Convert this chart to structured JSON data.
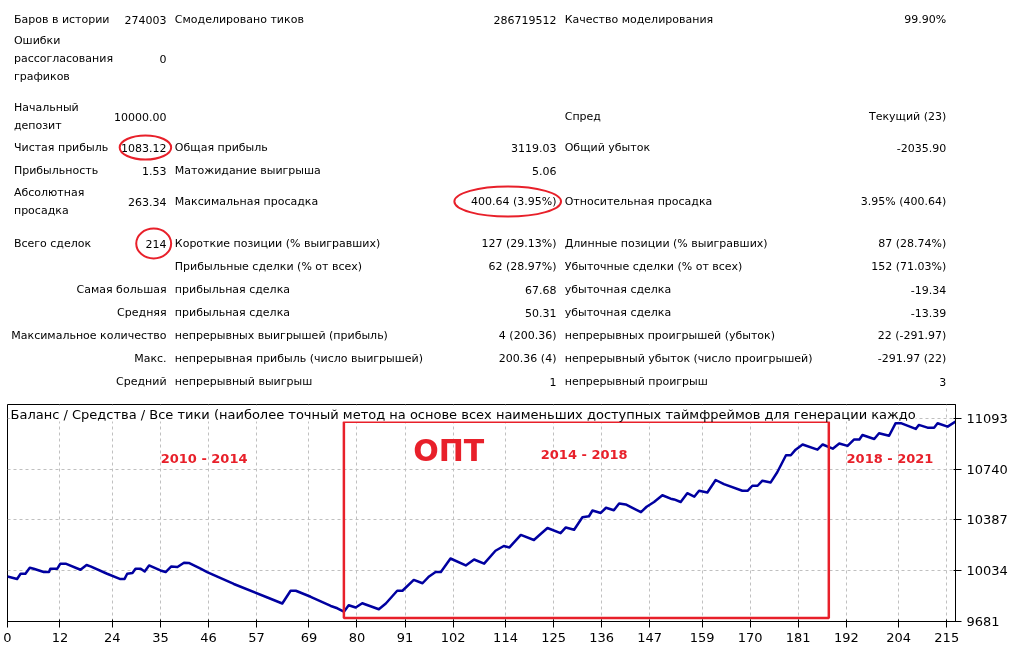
{
  "chart_data": [
    {
      "type": "other",
      "annotations": [
        "Баров в истории",
        "274003",
        "Смоделировано тиков",
        "286719512",
        "Качество моделирования",
        "99.90%",
        "Ошибки рассогласования графиков",
        "0",
        "Начальный депозит",
        "10000.00",
        "Спред",
        "Текущий (23)",
        "Чистая прибыль",
        "1083.12",
        "Общая прибыль",
        "3119.03",
        "Общий убыток",
        "-2035.90",
        "Прибыльность",
        "1.53",
        "Матожидание выигрыша",
        "5.06",
        "Абсолютная просадка",
        "263.34",
        "Максимальная просадка",
        "400.64 (3.95%)",
        "Относительная просадка",
        "3.95% (400.64)",
        "Всего сделок",
        "214",
        "Короткие позиции (% выигравших)",
        "127 (29.13%)",
        "Длинные позиции (% выигравших)",
        "87 (28.74%)",
        "Прибыльные сделки (% от всех)",
        "62 (28.97%)",
        "Убыточные сделки (% от всех)",
        "152 (71.03%)",
        "Самая большая",
        "прибыльная сделка",
        "67.68",
        "убыточная сделка",
        "-19.34",
        "Средняя",
        "прибыльная сделка",
        "50.31",
        "убыточная сделка",
        "-13.39",
        "Максимальное количество",
        "непрерывных выигрышей (прибыль)",
        "4 (200.36)",
        "непрерывных проигрышей (убыток)",
        "22 (-291.97)",
        "Макс.",
        "непрерывная прибыль (число выигрышей)",
        "200.36 (4)",
        "непрерывный убыток (число проигрышей)",
        "-291.97 (22)",
        "Средний",
        "непрерывный выигрыш",
        "1",
        "непрерывный проигрыш",
        "3"
      ]
    },
    {
      "type": "line",
      "title": "Баланс / Средства / Все тики (наиболее точный метод на основе всех наименьших доступных таймфреймов для генерации каждо",
      "xlim": [
        0,
        217
      ],
      "xticks": [
        0,
        12,
        24,
        35,
        46,
        57,
        69,
        80,
        91,
        102,
        114,
        125,
        136,
        147,
        159,
        170,
        181,
        192,
        204,
        215
      ],
      "ylim": [
        9681,
        11190
      ],
      "yticks": [
        9681,
        10034,
        10387,
        10740,
        11093
      ],
      "grid": true,
      "marker": "none",
      "line_style": "solid",
      "series": [
        {
          "color": "#0000a0",
          "x": [
            0,
            2.2,
            3,
            4.1,
            5.1,
            6,
            8.3,
            9.5,
            9.8,
            11.4,
            12.1,
            13.3,
            16.7,
            18.1,
            19,
            22.8,
            25.7,
            26.8,
            27.4,
            28.6,
            29.3,
            30.5,
            31.4,
            32.4,
            35,
            36.2,
            37.5,
            38.9,
            40.4,
            41.5,
            44.2,
            45.7,
            51.8,
            59.5,
            62.9,
            64.8,
            66,
            69.4,
            74,
            75.5,
            77,
            78.1,
            79.7,
            81.2,
            85,
            86.6,
            89.2,
            90.4,
            93,
            95,
            96.5,
            98,
            99.2,
            101.4,
            104.9,
            106.8,
            109.1,
            111.7,
            113.6,
            114.9,
            117.5,
            120.5,
            122.1,
            123.6,
            126.6,
            127.8,
            129.7,
            131.6,
            133.1,
            133.9,
            135.8,
            137,
            138.8,
            140,
            141.5,
            145,
            146.3,
            148,
            149.9,
            151.8,
            152.6,
            154.1,
            155.6,
            157.2,
            158.3,
            160.2,
            162.1,
            164,
            168.2,
            169.4,
            170.5,
            171.7,
            172.8,
            174.7,
            176.2,
            178.2,
            179.3,
            180.4,
            182,
            185.4,
            186.6,
            188.9,
            190.4,
            192.3,
            193.8,
            195,
            195.7,
            198.4,
            199.5,
            201.8,
            203.3,
            204.5,
            207.9,
            208.6,
            210.6,
            212.1,
            212.9,
            215.2,
            217
          ],
          "values": [
            9994,
            9977,
            10013,
            10013,
            10055,
            10048,
            10025,
            10025,
            10048,
            10048,
            10083,
            10083,
            10041,
            10074,
            10064,
            10013,
            9977,
            9977,
            10013,
            10018,
            10048,
            10048,
            10029,
            10071,
            10036,
            10025,
            10064,
            10060,
            10090,
            10088,
            10048,
            10025,
            9942,
            9848,
            9806,
            9895,
            9895,
            9853,
            9789,
            9773,
            9749,
            9794,
            9778,
            9808,
            9766,
            9806,
            9895,
            9895,
            9970,
            9947,
            9994,
            10025,
            10025,
            10119,
            10071,
            10112,
            10083,
            10173,
            10206,
            10196,
            10283,
            10248,
            10291,
            10331,
            10295,
            10335,
            10319,
            10406,
            10413,
            10453,
            10436,
            10472,
            10455,
            10502,
            10495,
            10441,
            10479,
            10512,
            10559,
            10535,
            10530,
            10512,
            10573,
            10549,
            10590,
            10578,
            10665,
            10636,
            10590,
            10590,
            10625,
            10625,
            10660,
            10648,
            10719,
            10837,
            10837,
            10876,
            10912,
            10876,
            10912,
            10883,
            10919,
            10902,
            10947,
            10947,
            10978,
            10950,
            10990,
            10973,
            11060,
            11060,
            11020,
            11048,
            11029,
            11029,
            11060,
            11036,
            11072
          ]
        }
      ],
      "annotations": [
        "ОПТ",
        "2010 - 2014",
        "2014 - 2018",
        "2018 - 2021"
      ]
    }
  ]
}
